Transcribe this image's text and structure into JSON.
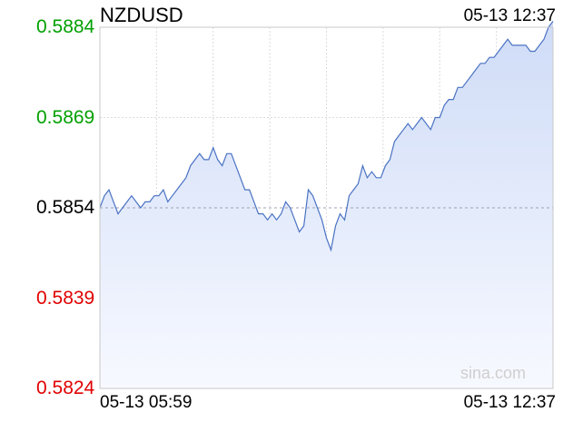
{
  "header": {
    "symbol": "NZDUSD",
    "timestamp": "05-13 12:37"
  },
  "watermark": "sina.com",
  "colors": {
    "line": "#4a72c3",
    "area_top": "#cfdcf7",
    "area_bottom": "#f7f9ff",
    "up": "#00a000",
    "down": "#e00000",
    "neutral": "#000000",
    "grid": "#dcdcdc",
    "baseline": "#a0a0b8"
  },
  "chart_data": {
    "type": "area",
    "title": "NZDUSD",
    "x_tick_labels": [
      "05-13 05:59",
      "05-13 12:37"
    ],
    "y_tick_labels": [
      {
        "value": 0.5884,
        "label": "0.5884",
        "status": "up"
      },
      {
        "value": 0.5869,
        "label": "0.5869",
        "status": "up"
      },
      {
        "value": 0.5854,
        "label": "0.5854",
        "status": "neutral"
      },
      {
        "value": 0.5839,
        "label": "0.5839",
        "status": "down"
      },
      {
        "value": 0.5824,
        "label": "0.5824",
        "status": "down"
      }
    ],
    "ylim": [
      0.5824,
      0.5884
    ],
    "baseline": 0.5854,
    "grid": true,
    "x": [
      0,
      1,
      2,
      3,
      4,
      5,
      6,
      7,
      8,
      9,
      10,
      11,
      12,
      13,
      14,
      15,
      16,
      17,
      18,
      19,
      20,
      21,
      22,
      23,
      24,
      25,
      26,
      27,
      28,
      29,
      30,
      31,
      32,
      33,
      34,
      35,
      36,
      37,
      38,
      39,
      40,
      41,
      42,
      43,
      44,
      45,
      46,
      47,
      48,
      49,
      50,
      51,
      52,
      53,
      54,
      55,
      56,
      57,
      58,
      59,
      60,
      61,
      62,
      63,
      64,
      65,
      66,
      67,
      68,
      69,
      70,
      71,
      72,
      73,
      74,
      75,
      76,
      77,
      78,
      79,
      80,
      81,
      82,
      83,
      84,
      85,
      86,
      87,
      88,
      89,
      90,
      91,
      92,
      93,
      94,
      95,
      96,
      97,
      98,
      99,
      100
    ],
    "values": [
      0.5854,
      0.5856,
      0.5857,
      0.5855,
      0.5853,
      0.5854,
      0.5855,
      0.5856,
      0.5855,
      0.5854,
      0.5855,
      0.5855,
      0.5856,
      0.5856,
      0.5857,
      0.5855,
      0.5856,
      0.5857,
      0.5858,
      0.5859,
      0.5861,
      0.5862,
      0.5863,
      0.5862,
      0.5862,
      0.5864,
      0.5862,
      0.5861,
      0.5863,
      0.5863,
      0.5861,
      0.5859,
      0.5857,
      0.5857,
      0.5855,
      0.5853,
      0.5853,
      0.5852,
      0.5853,
      0.5852,
      0.5853,
      0.5855,
      0.5854,
      0.5852,
      0.585,
      0.5851,
      0.5857,
      0.5856,
      0.5854,
      0.5852,
      0.5849,
      0.5847,
      0.5851,
      0.5853,
      0.5852,
      0.5856,
      0.5857,
      0.5858,
      0.5861,
      0.5859,
      0.586,
      0.5859,
      0.5859,
      0.5861,
      0.5862,
      0.5865,
      0.5866,
      0.5867,
      0.5868,
      0.5867,
      0.5868,
      0.5869,
      0.5868,
      0.5867,
      0.5869,
      0.5869,
      0.5871,
      0.5872,
      0.5872,
      0.5874,
      0.5874,
      0.5875,
      0.5876,
      0.5877,
      0.5878,
      0.5878,
      0.5879,
      0.5879,
      0.588,
      0.5881,
      0.5882,
      0.5881,
      0.5881,
      0.5881,
      0.5881,
      0.588,
      0.588,
      0.5881,
      0.5882,
      0.5884,
      0.5885
    ]
  }
}
